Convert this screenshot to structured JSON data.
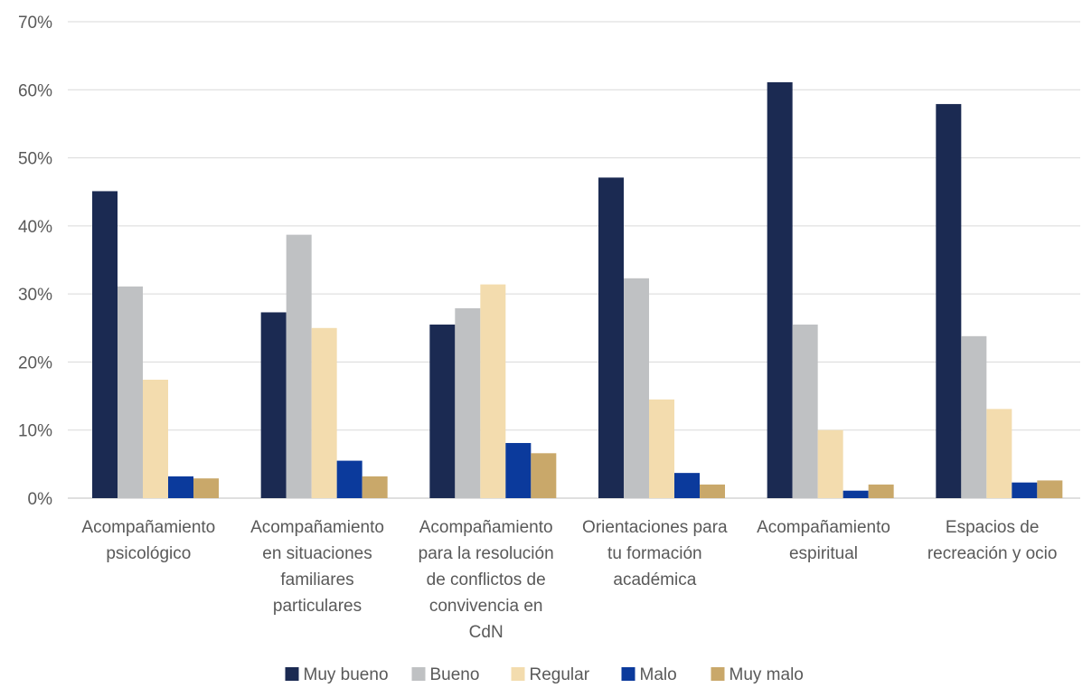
{
  "chart_data": {
    "type": "bar",
    "title": "",
    "xlabel": "",
    "ylabel": "",
    "ylim": [
      0,
      70
    ],
    "yticks": [
      "0%",
      "10%",
      "20%",
      "30%",
      "40%",
      "50%",
      "60%",
      "70%"
    ],
    "grid": true,
    "legend_position": "bottom",
    "categories": [
      [
        "Acompañamiento",
        "psicológico"
      ],
      [
        "Acompañamiento",
        "en situaciones",
        "familiares",
        "particulares"
      ],
      [
        "Acompañamiento",
        "para la resolución",
        "de conflictos de",
        "convivencia en",
        "CdN"
      ],
      [
        "Orientaciones para",
        "tu formación",
        "académica"
      ],
      [
        "Acompañamiento",
        "espiritual"
      ],
      [
        "Espacios de",
        "recreación y ocio"
      ]
    ],
    "series": [
      {
        "name": "Muy bueno",
        "color": "#1b2a52",
        "values": [
          45.1,
          27.3,
          25.5,
          47.1,
          61.1,
          57.9
        ]
      },
      {
        "name": "Bueno",
        "color": "#bfc1c3",
        "values": [
          31.1,
          38.7,
          27.9,
          32.3,
          25.5,
          23.8
        ]
      },
      {
        "name": "Regular",
        "color": "#f3dcae",
        "values": [
          17.4,
          25.0,
          31.4,
          14.5,
          10.0,
          13.1
        ]
      },
      {
        "name": "Malo",
        "color": "#0b3a9c",
        "values": [
          3.2,
          5.5,
          8.1,
          3.7,
          1.1,
          2.3
        ]
      },
      {
        "name": "Muy malo",
        "color": "#c9a86a",
        "values": [
          2.9,
          3.2,
          6.6,
          2.0,
          2.0,
          2.6
        ]
      }
    ]
  }
}
